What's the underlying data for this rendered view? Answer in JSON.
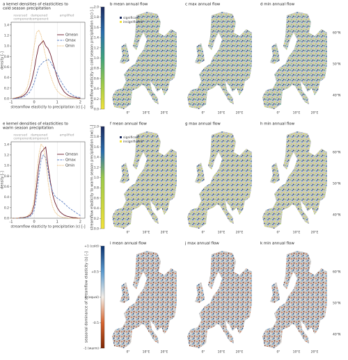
{
  "chart_data": [
    {
      "type": "density",
      "title": [
        "a kernel densities of elasticities to",
        "cold season precipitation"
      ],
      "annotations": [
        "reversed",
        "dampened",
        "amplified",
        "component",
        "component"
      ],
      "xlabel": "streamflow elasticity to precipitation (ε) [-]",
      "ylabel": "density [-]",
      "xlim": [
        -1,
        2.2
      ],
      "xticks": [
        -1,
        0,
        1,
        2
      ],
      "ylim": [
        0,
        1.45
      ],
      "yticks": [
        {
          "value": 0,
          "label": "0.0"
        },
        0.2,
        0.4,
        0.6,
        0.8,
        {
          "value": 1,
          "label": "1.0"
        },
        1.2,
        1.4
      ],
      "grid": true,
      "x": [
        -1,
        -0.9,
        -0.8,
        -0.7,
        -0.6,
        -0.5,
        -0.4,
        -0.3,
        -0.2,
        -0.1,
        0,
        0.1,
        0.2,
        0.3,
        0.4,
        0.5,
        0.6,
        0.7,
        0.8,
        0.9,
        1,
        1.1,
        1.2,
        1.3,
        1.4,
        1.5,
        1.6,
        1.7,
        1.8,
        1.9,
        2
      ],
      "series": [
        {
          "name": "Qmean",
          "color": "#6b1a2a",
          "style": "solid",
          "values": [
            0,
            0,
            0.01,
            0.02,
            0.03,
            0.05,
            0.08,
            0.13,
            0.22,
            0.35,
            0.55,
            0.8,
            1.0,
            1.05,
            1.1,
            1.0,
            0.95,
            0.85,
            0.7,
            0.55,
            0.4,
            0.28,
            0.2,
            0.13,
            0.09,
            0.06,
            0.04,
            0.03,
            0.02,
            0.01,
            0.01
          ]
        },
        {
          "name": "Qmax",
          "color": "#5b7fc4",
          "style": "dashed",
          "values": [
            0,
            0,
            0,
            0.01,
            0.02,
            0.03,
            0.05,
            0.08,
            0.12,
            0.2,
            0.3,
            0.45,
            0.6,
            0.65,
            0.7,
            0.72,
            0.75,
            0.7,
            0.62,
            0.55,
            0.47,
            0.38,
            0.3,
            0.23,
            0.17,
            0.12,
            0.09,
            0.06,
            0.04,
            0.03,
            0.02
          ]
        },
        {
          "name": "Qmin",
          "color": "#e0a040",
          "style": "dotted",
          "values": [
            0,
            0.01,
            0.02,
            0.03,
            0.05,
            0.08,
            0.13,
            0.22,
            0.4,
            0.7,
            1.0,
            1.25,
            1.3,
            1.2,
            1.0,
            0.8,
            0.6,
            0.45,
            0.32,
            0.22,
            0.15,
            0.1,
            0.07,
            0.05,
            0.03,
            0.02,
            0.01,
            0.01,
            0,
            0,
            0
          ]
        }
      ]
    },
    {
      "type": "density",
      "title": [
        "e kernel densities of elasticities to",
        "warm season precipitation"
      ],
      "annotations": [
        "reversed",
        "dampened",
        "amplified",
        "component",
        "component"
      ],
      "xlabel": "streamflow elasticity to precipitation (ε) [-]",
      "ylabel": "density [-]",
      "xlim": [
        -1,
        2.2
      ],
      "xticks": [
        -1,
        0,
        1,
        2
      ],
      "ylim": [
        0,
        1.45
      ],
      "yticks": [
        {
          "value": 0,
          "label": "0.0"
        },
        0.2,
        0.4,
        0.6,
        0.8,
        {
          "value": 1,
          "label": "1.0"
        },
        1.2,
        1.4
      ],
      "grid": true,
      "x": [
        -1,
        -0.9,
        -0.8,
        -0.7,
        -0.6,
        -0.5,
        -0.4,
        -0.3,
        -0.2,
        -0.1,
        0,
        0.1,
        0.2,
        0.3,
        0.4,
        0.5,
        0.6,
        0.7,
        0.8,
        0.9,
        1,
        1.1,
        1.2,
        1.3,
        1.4,
        1.5,
        1.6,
        1.7,
        1.8,
        1.9,
        2
      ],
      "series": [
        {
          "name": "Qmean",
          "color": "#6b1a2a",
          "style": "solid",
          "values": [
            0,
            0,
            0,
            0,
            0.01,
            0.01,
            0.02,
            0.03,
            0.05,
            0.1,
            0.25,
            0.6,
            1.0,
            1.25,
            1.3,
            1.35,
            1.0,
            0.7,
            0.45,
            0.3,
            0.2,
            0.13,
            0.09,
            0.06,
            0.04,
            0.03,
            0.02,
            0.01,
            0.01,
            0,
            0
          ]
        },
        {
          "name": "Qmax",
          "color": "#5b7fc4",
          "style": "dashed",
          "values": [
            0,
            0,
            0,
            0,
            0,
            0.01,
            0.01,
            0.02,
            0.03,
            0.06,
            0.15,
            0.4,
            0.8,
            1.1,
            1.2,
            1.15,
            0.9,
            0.65,
            0.5,
            0.42,
            0.38,
            0.35,
            0.32,
            0.28,
            0.24,
            0.2,
            0.17,
            0.14,
            0.11,
            0.08,
            0.05
          ]
        },
        {
          "name": "Qmin",
          "color": "#e0a040",
          "style": "dotted",
          "values": [
            0,
            0,
            0,
            0,
            0.01,
            0.01,
            0.02,
            0.04,
            0.08,
            0.15,
            0.35,
            0.8,
            1.2,
            1.4,
            1.35,
            1.1,
            0.7,
            0.4,
            0.22,
            0.12,
            0.07,
            0.04,
            0.02,
            0.01,
            0.01,
            0,
            0,
            0,
            0,
            0,
            0
          ]
        }
      ]
    },
    {
      "type": "map",
      "panels": [
        "b mean annual flow",
        "c max annual flow",
        "d min annual flow"
      ],
      "colorbar_label": "streamflow elasticity to cold season precipitation (εc) [-]",
      "colorbar_lim": [
        0,
        2
      ],
      "colorbar_colors": [
        "#f2e33a",
        "#9ccb4a",
        "#3fa37c",
        "#2a6fae",
        "#1b2a5e"
      ],
      "colorbar_ticks": [
        {
          "value": 0,
          "label": "0.0"
        },
        0.2,
        0.4,
        0.6,
        0.8,
        {
          "value": 1,
          "label": "1.0"
        },
        1.2,
        1.4,
        1.6,
        1.8,
        {
          "value": 2,
          "label": "2.0"
        }
      ],
      "legend": [
        "significant",
        "insignificant"
      ],
      "lat_labels": [
        "60°N",
        "50°N",
        "40°N"
      ],
      "lon_labels": [
        "0°",
        "10°E",
        "20°E"
      ]
    },
    {
      "type": "map",
      "panels": [
        "f mean annual flow",
        "g max annual flow",
        "h min annual flow"
      ],
      "colorbar_label": "streamflow elasticity to warm season precipitation (εw) [-]",
      "colorbar_lim": [
        0,
        2
      ],
      "colorbar_colors": [
        "#f2e33a",
        "#c8d640",
        "#9ccb4a",
        "#2a6fae",
        "#1b2a5e"
      ],
      "colorbar_ticks": [
        {
          "value": 0,
          "label": "0.0"
        },
        0.2,
        0.4,
        0.6,
        0.8,
        {
          "value": 1,
          "label": "1.0"
        },
        1.2,
        1.4,
        1.6,
        1.8,
        {
          "value": 2,
          "label": "2.0"
        }
      ],
      "legend": [
        "significant",
        "insignificant"
      ],
      "lat_labels": [
        "60°N",
        "50°N",
        "40°N"
      ],
      "lon_labels": [
        "0°",
        "10°E",
        "20°E"
      ]
    },
    {
      "type": "map",
      "panels": [
        "i mean annual flow",
        "j max annual flow",
        "k min annual flow"
      ],
      "colorbar_label": "seasonal dominance of streamflow elasticity (s) [-]",
      "colorbar_lim": [
        -1,
        1
      ],
      "colorbar_colors": [
        "#7f2704",
        "#d7652f",
        "#f4efe8",
        "#5a9bd0",
        "#0b3370"
      ],
      "colorbar_ticks": [
        {
          "value": 1,
          "label": "+1 (cold)"
        },
        {
          "value": 0.5,
          "label": "+0.5"
        },
        {
          "value": 0,
          "label": "0 (equal)"
        },
        -0.5,
        {
          "value": -1,
          "label": "-1 (warm)"
        }
      ],
      "lat_labels": [
        "60°N",
        "50°N",
        "40°N"
      ],
      "lon_labels": [
        "0°",
        "10°E",
        "20°E"
      ]
    }
  ]
}
